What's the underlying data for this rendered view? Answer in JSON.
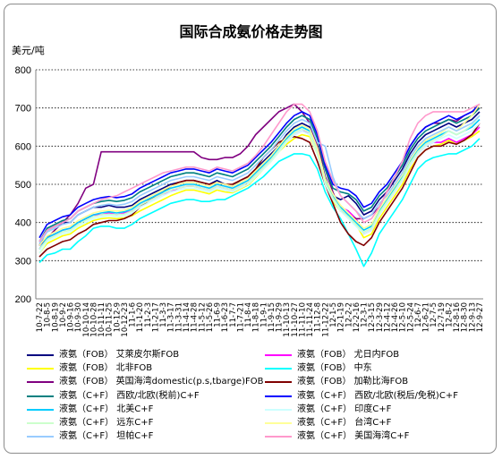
{
  "chart_data": {
    "type": "line",
    "title": "国际合成氨价格走势图",
    "ylabel": "美元/吨",
    "ylim": [
      200,
      800
    ],
    "yticks": [
      200,
      300,
      400,
      500,
      600,
      700,
      800
    ],
    "grid": "horizontal-dotted",
    "x_tick_labels_note": "dates 10-7-22 … 12-9-27 (partially illegible)",
    "x": [
      "10-7-22",
      "10-8-5",
      "10-8-19",
      "10-9-2",
      "10-9-16",
      "10-9-30",
      "10-10-14",
      "10-10-28",
      "10-11-11",
      "10-11-25",
      "10-12-9",
      "10-12-23",
      "11-1-6",
      "11-1-20",
      "11-2-3",
      "11-2-17",
      "11-3-3",
      "11-3-17",
      "11-3-31",
      "11-4-14",
      "11-4-28",
      "11-5-12",
      "11-5-26",
      "11-6-9",
      "11-6-23",
      "11-7-7",
      "11-7-21",
      "11-8-4",
      "11-8-18",
      "11-9-1",
      "11-9-15",
      "11-9-29",
      "11-10-13",
      "11-10-27",
      "11-11-10",
      "11-11-24",
      "11-12-8",
      "11-12-22",
      "12-1-5",
      "12-1-19",
      "12-2-2",
      "12-2-16",
      "12-3-1",
      "12-3-15",
      "12-3-29",
      "12-4-12",
      "12-4-26",
      "12-5-10",
      "12-5-24",
      "12-6-7",
      "12-6-21",
      "12-7-5",
      "12-7-19",
      "12-8-2",
      "12-8-16",
      "12-8-30",
      "12-9-13",
      "12-9-27"
    ],
    "legend": [
      {
        "label": "液氨（FOB） 艾萊皮尔斯FOB",
        "color": "#000080"
      },
      {
        "label": "液氨（FOB） 尤日内FOB",
        "color": "#ff00ff"
      },
      {
        "label": "液氨（FOB） 北非FOB",
        "color": "#ffff00"
      },
      {
        "label": "液氨（FOB） 中东",
        "color": "#00ffff"
      },
      {
        "label": "液氨（FOB） 英国海湾domestic(p.s,tbarge)FOB",
        "color": "#800080"
      },
      {
        "label": "液氨（FOB） 加勒比海FOB",
        "color": "#800000"
      },
      {
        "label": "液氨（C+F） 西欧/北欧(税前)C+F",
        "color": "#008080"
      },
      {
        "label": "液氨（C+F） 西欧/北欧(税后/免税)C+F",
        "color": "#0000ff"
      },
      {
        "label": "液氨（C+F） 北美C+F",
        "color": "#00ccff"
      },
      {
        "label": "液氨（C+F） 印度C+F",
        "color": "#ccffff"
      },
      {
        "label": "液氨（C+F） 远东C+F",
        "color": "#ccffcc"
      },
      {
        "label": "液氨（C+F） 台湾C+F",
        "color": "#ffff99"
      },
      {
        "label": "液氨（C+F） 坦帕C+F",
        "color": "#99ccff"
      },
      {
        "label": "液氨（C+F） 美国海湾C+F",
        "color": "#ff99cc"
      }
    ],
    "series": [
      {
        "name": "液氨（FOB） 艾萊皮尔斯FOB",
        "color": "#000080",
        "values": [
          340,
          380,
          390,
          400,
          400,
          420,
          430,
          440,
          440,
          445,
          440,
          440,
          445,
          460,
          470,
          480,
          490,
          500,
          505,
          510,
          510,
          505,
          500,
          510,
          500,
          495,
          510,
          520,
          540,
          560,
          580,
          600,
          630,
          650,
          660,
          650,
          600,
          520,
          470,
          460,
          470,
          450,
          420,
          430,
          460,
          480,
          510,
          540,
          580,
          610,
          630,
          640,
          650,
          660,
          650,
          660,
          670,
          690
        ]
      },
      {
        "name": "液氨（FOB） 尤日内FOB",
        "color": "#ff00ff",
        "values": [
          330,
          360,
          370,
          380,
          385,
          400,
          410,
          420,
          420,
          425,
          420,
          425,
          430,
          445,
          455,
          465,
          475,
          480,
          490,
          495,
          495,
          490,
          485,
          495,
          490,
          485,
          495,
          505,
          525,
          545,
          565,
          590,
          610,
          630,
          640,
          635,
          590,
          510,
          460,
          440,
          430,
          410,
          370,
          380,
          420,
          450,
          480,
          510,
          550,
          580,
          600,
          610,
          610,
          620,
          610,
          620,
          630,
          650
        ]
      },
      {
        "name": "液氨（FOB） 北非FOB",
        "color": "#ffff00",
        "values": [
          320,
          345,
          355,
          365,
          370,
          385,
          395,
          405,
          410,
          412,
          410,
          412,
          418,
          430,
          440,
          450,
          460,
          470,
          478,
          485,
          485,
          480,
          475,
          485,
          480,
          478,
          488,
          498,
          518,
          540,
          560,
          585,
          605,
          620,
          630,
          625,
          580,
          505,
          455,
          430,
          420,
          395,
          360,
          370,
          410,
          440,
          470,
          500,
          540,
          570,
          590,
          600,
          605,
          615,
          605,
          615,
          625,
          640
        ]
      },
      {
        "name": "液氨（FOB） 中东",
        "color": "#00ffff",
        "values": [
          295,
          315,
          320,
          330,
          330,
          350,
          365,
          385,
          390,
          390,
          385,
          385,
          395,
          410,
          420,
          430,
          440,
          450,
          455,
          460,
          460,
          455,
          455,
          460,
          460,
          470,
          480,
          490,
          505,
          520,
          540,
          560,
          570,
          580,
          580,
          575,
          540,
          480,
          440,
          410,
          370,
          330,
          285,
          320,
          370,
          400,
          430,
          460,
          500,
          540,
          560,
          570,
          575,
          580,
          580,
          590,
          600,
          620
        ]
      },
      {
        "name": "液氨（FOB） 英国海湾domestic(p.s,tbarge)FOB",
        "color": "#800080",
        "values": [
          340,
          360,
          380,
          400,
          420,
          450,
          490,
          500,
          585,
          585,
          585,
          585,
          585,
          585,
          585,
          585,
          585,
          585,
          585,
          585,
          585,
          570,
          565,
          565,
          570,
          570,
          580,
          600,
          630,
          650,
          670,
          690,
          700,
          710,
          690,
          660,
          600,
          540,
          480,
          430,
          420,
          410,
          410,
          420,
          440,
          480,
          520,
          560,
          600,
          630,
          650,
          660,
          660,
          670,
          665,
          680,
          690,
          700
        ]
      },
      {
        "name": "液氨（FOB） 加勒比海FOB",
        "color": "#800000",
        "values": [
          310,
          330,
          340,
          350,
          355,
          370,
          380,
          395,
          400,
          405,
          405,
          410,
          420,
          440,
          455,
          470,
          480,
          495,
          505,
          510,
          510,
          505,
          500,
          505,
          500,
          500,
          510,
          520,
          540,
          570,
          590,
          610,
          620,
          625,
          620,
          610,
          560,
          500,
          450,
          400,
          370,
          350,
          340,
          360,
          400,
          430,
          460,
          490,
          530,
          570,
          590,
          600,
          600,
          610,
          605,
          615,
          630,
          660
        ]
      },
      {
        "name": "液氨（C+F） 西欧/北欧(税前)C+F",
        "color": "#008080",
        "values": [
          350,
          385,
          395,
          405,
          410,
          430,
          440,
          450,
          455,
          458,
          455,
          458,
          465,
          480,
          490,
          500,
          510,
          520,
          525,
          530,
          530,
          525,
          520,
          530,
          525,
          520,
          530,
          540,
          560,
          580,
          600,
          625,
          650,
          670,
          680,
          670,
          620,
          540,
          490,
          480,
          475,
          460,
          430,
          440,
          470,
          490,
          520,
          550,
          590,
          620,
          640,
          650,
          660,
          670,
          660,
          670,
          680,
          700
        ]
      },
      {
        "name": "液氨（C+F） 西欧/北欧(税后/免税)C+F",
        "color": "#0000ff",
        "values": [
          360,
          395,
          405,
          415,
          420,
          440,
          450,
          460,
          465,
          468,
          465,
          468,
          475,
          490,
          500,
          510,
          520,
          530,
          535,
          540,
          540,
          535,
          530,
          540,
          535,
          530,
          540,
          550,
          570,
          590,
          610,
          635,
          660,
          680,
          690,
          680,
          630,
          550,
          500,
          490,
          485,
          470,
          440,
          450,
          480,
          500,
          530,
          560,
          600,
          630,
          650,
          660,
          670,
          680,
          670,
          680,
          690,
          710
        ]
      },
      {
        "name": "液氨（C+F） 北美C+F",
        "color": "#00ccff",
        "values": [
          330,
          360,
          370,
          380,
          385,
          400,
          410,
          420,
          425,
          428,
          425,
          428,
          435,
          450,
          460,
          470,
          480,
          490,
          495,
          500,
          500,
          495,
          490,
          500,
          495,
          490,
          500,
          510,
          530,
          550,
          570,
          595,
          620,
          640,
          650,
          640,
          590,
          510,
          470,
          440,
          420,
          400,
          380,
          390,
          430,
          460,
          490,
          520,
          560,
          590,
          610,
          620,
          630,
          640,
          630,
          640,
          650,
          670
        ]
      },
      {
        "name": "液氨（C+F） 印度C+F",
        "color": "#ccffff",
        "values": [
          320,
          350,
          360,
          370,
          375,
          390,
          400,
          410,
          415,
          418,
          415,
          418,
          425,
          440,
          450,
          460,
          470,
          480,
          485,
          490,
          490,
          485,
          480,
          490,
          485,
          480,
          490,
          500,
          520,
          540,
          560,
          585,
          610,
          630,
          640,
          630,
          580,
          500,
          460,
          430,
          410,
          390,
          370,
          380,
          420,
          450,
          480,
          510,
          550,
          580,
          600,
          610,
          620,
          630,
          620,
          630,
          640,
          660
        ]
      },
      {
        "name": "液氨（C+F） 远东C+F",
        "color": "#ccffcc",
        "values": [
          330,
          355,
          365,
          375,
          380,
          395,
          405,
          415,
          420,
          422,
          420,
          422,
          430,
          445,
          455,
          465,
          475,
          485,
          490,
          495,
          495,
          490,
          485,
          495,
          490,
          485,
          495,
          505,
          525,
          545,
          565,
          590,
          615,
          635,
          645,
          635,
          585,
          505,
          465,
          435,
          415,
          395,
          375,
          385,
          425,
          455,
          485,
          515,
          555,
          585,
          605,
          615,
          625,
          640,
          630,
          640,
          655,
          680
        ]
      },
      {
        "name": "液氨（C+F） 台湾C+F",
        "color": "#ffff99",
        "values": [
          340,
          365,
          375,
          385,
          390,
          405,
          415,
          425,
          430,
          432,
          430,
          432,
          440,
          455,
          465,
          475,
          485,
          495,
          500,
          505,
          505,
          500,
          495,
          505,
          500,
          495,
          505,
          515,
          535,
          555,
          575,
          600,
          625,
          645,
          655,
          645,
          595,
          515,
          475,
          445,
          425,
          405,
          385,
          395,
          435,
          465,
          495,
          525,
          565,
          595,
          615,
          625,
          635,
          650,
          640,
          660,
          680,
          710
        ]
      },
      {
        "name": "液氨（C+F） 坦帕C+F",
        "color": "#99ccff",
        "values": [
          345,
          375,
          385,
          395,
          400,
          420,
          430,
          440,
          445,
          448,
          445,
          448,
          455,
          470,
          480,
          490,
          500,
          510,
          515,
          520,
          520,
          515,
          510,
          520,
          515,
          510,
          520,
          530,
          550,
          570,
          590,
          615,
          640,
          660,
          670,
          660,
          610,
          600,
          520,
          470,
          450,
          430,
          410,
          420,
          450,
          470,
          500,
          530,
          570,
          600,
          620,
          630,
          640,
          650,
          640,
          650,
          660,
          680
        ]
      },
      {
        "name": "液氨（C+F） 美国海湾C+F",
        "color": "#ff99cc",
        "values": [
          350,
          380,
          390,
          400,
          410,
          430,
          440,
          450,
          460,
          465,
          470,
          480,
          490,
          500,
          510,
          520,
          530,
          535,
          540,
          545,
          545,
          540,
          535,
          545,
          540,
          535,
          545,
          555,
          575,
          600,
          630,
          660,
          690,
          710,
          710,
          690,
          640,
          560,
          510,
          470,
          450,
          430,
          400,
          410,
          440,
          480,
          520,
          560,
          620,
          660,
          680,
          690,
          690,
          690,
          690,
          690,
          700,
          710
        ]
      }
    ]
  }
}
